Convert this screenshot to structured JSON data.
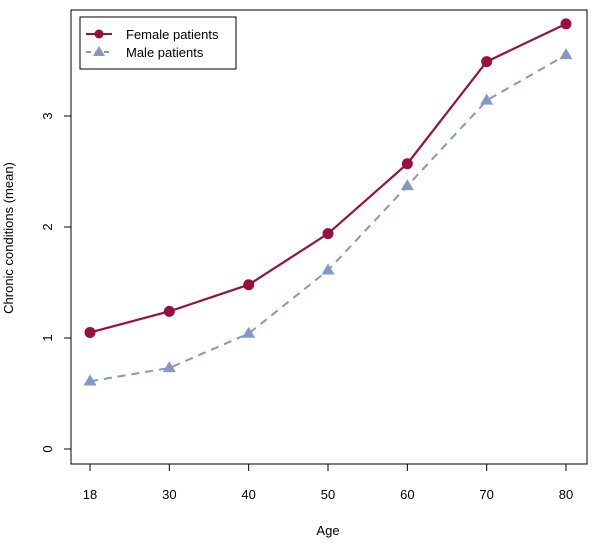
{
  "chart_data": {
    "type": "line",
    "title": "",
    "xlabel": "Age",
    "ylabel": "Chronic conditions (mean)",
    "x": [
      18,
      30,
      40,
      50,
      60,
      70,
      80
    ],
    "x_tick_labels": [
      "18",
      "30",
      "40",
      "50",
      "60",
      "70",
      "80"
    ],
    "ylim": [
      -0.1,
      3.95
    ],
    "y_ticks": [
      0,
      1,
      2,
      3
    ],
    "y_tick_labels": [
      "0",
      "1",
      "2",
      "3"
    ],
    "grid": false,
    "legend_position": "top-left",
    "series": [
      {
        "name": "Female patients",
        "values": [
          1.05,
          1.24,
          1.48,
          1.94,
          2.57,
          3.49,
          3.83
        ],
        "color": "#99103f",
        "line_style": "solid",
        "marker": "circle"
      },
      {
        "name": "Male patients",
        "values": [
          0.61,
          0.73,
          1.04,
          1.61,
          2.37,
          3.14,
          3.55
        ],
        "color": "#8497c8",
        "line_style": "dashed",
        "marker": "triangle"
      }
    ]
  }
}
